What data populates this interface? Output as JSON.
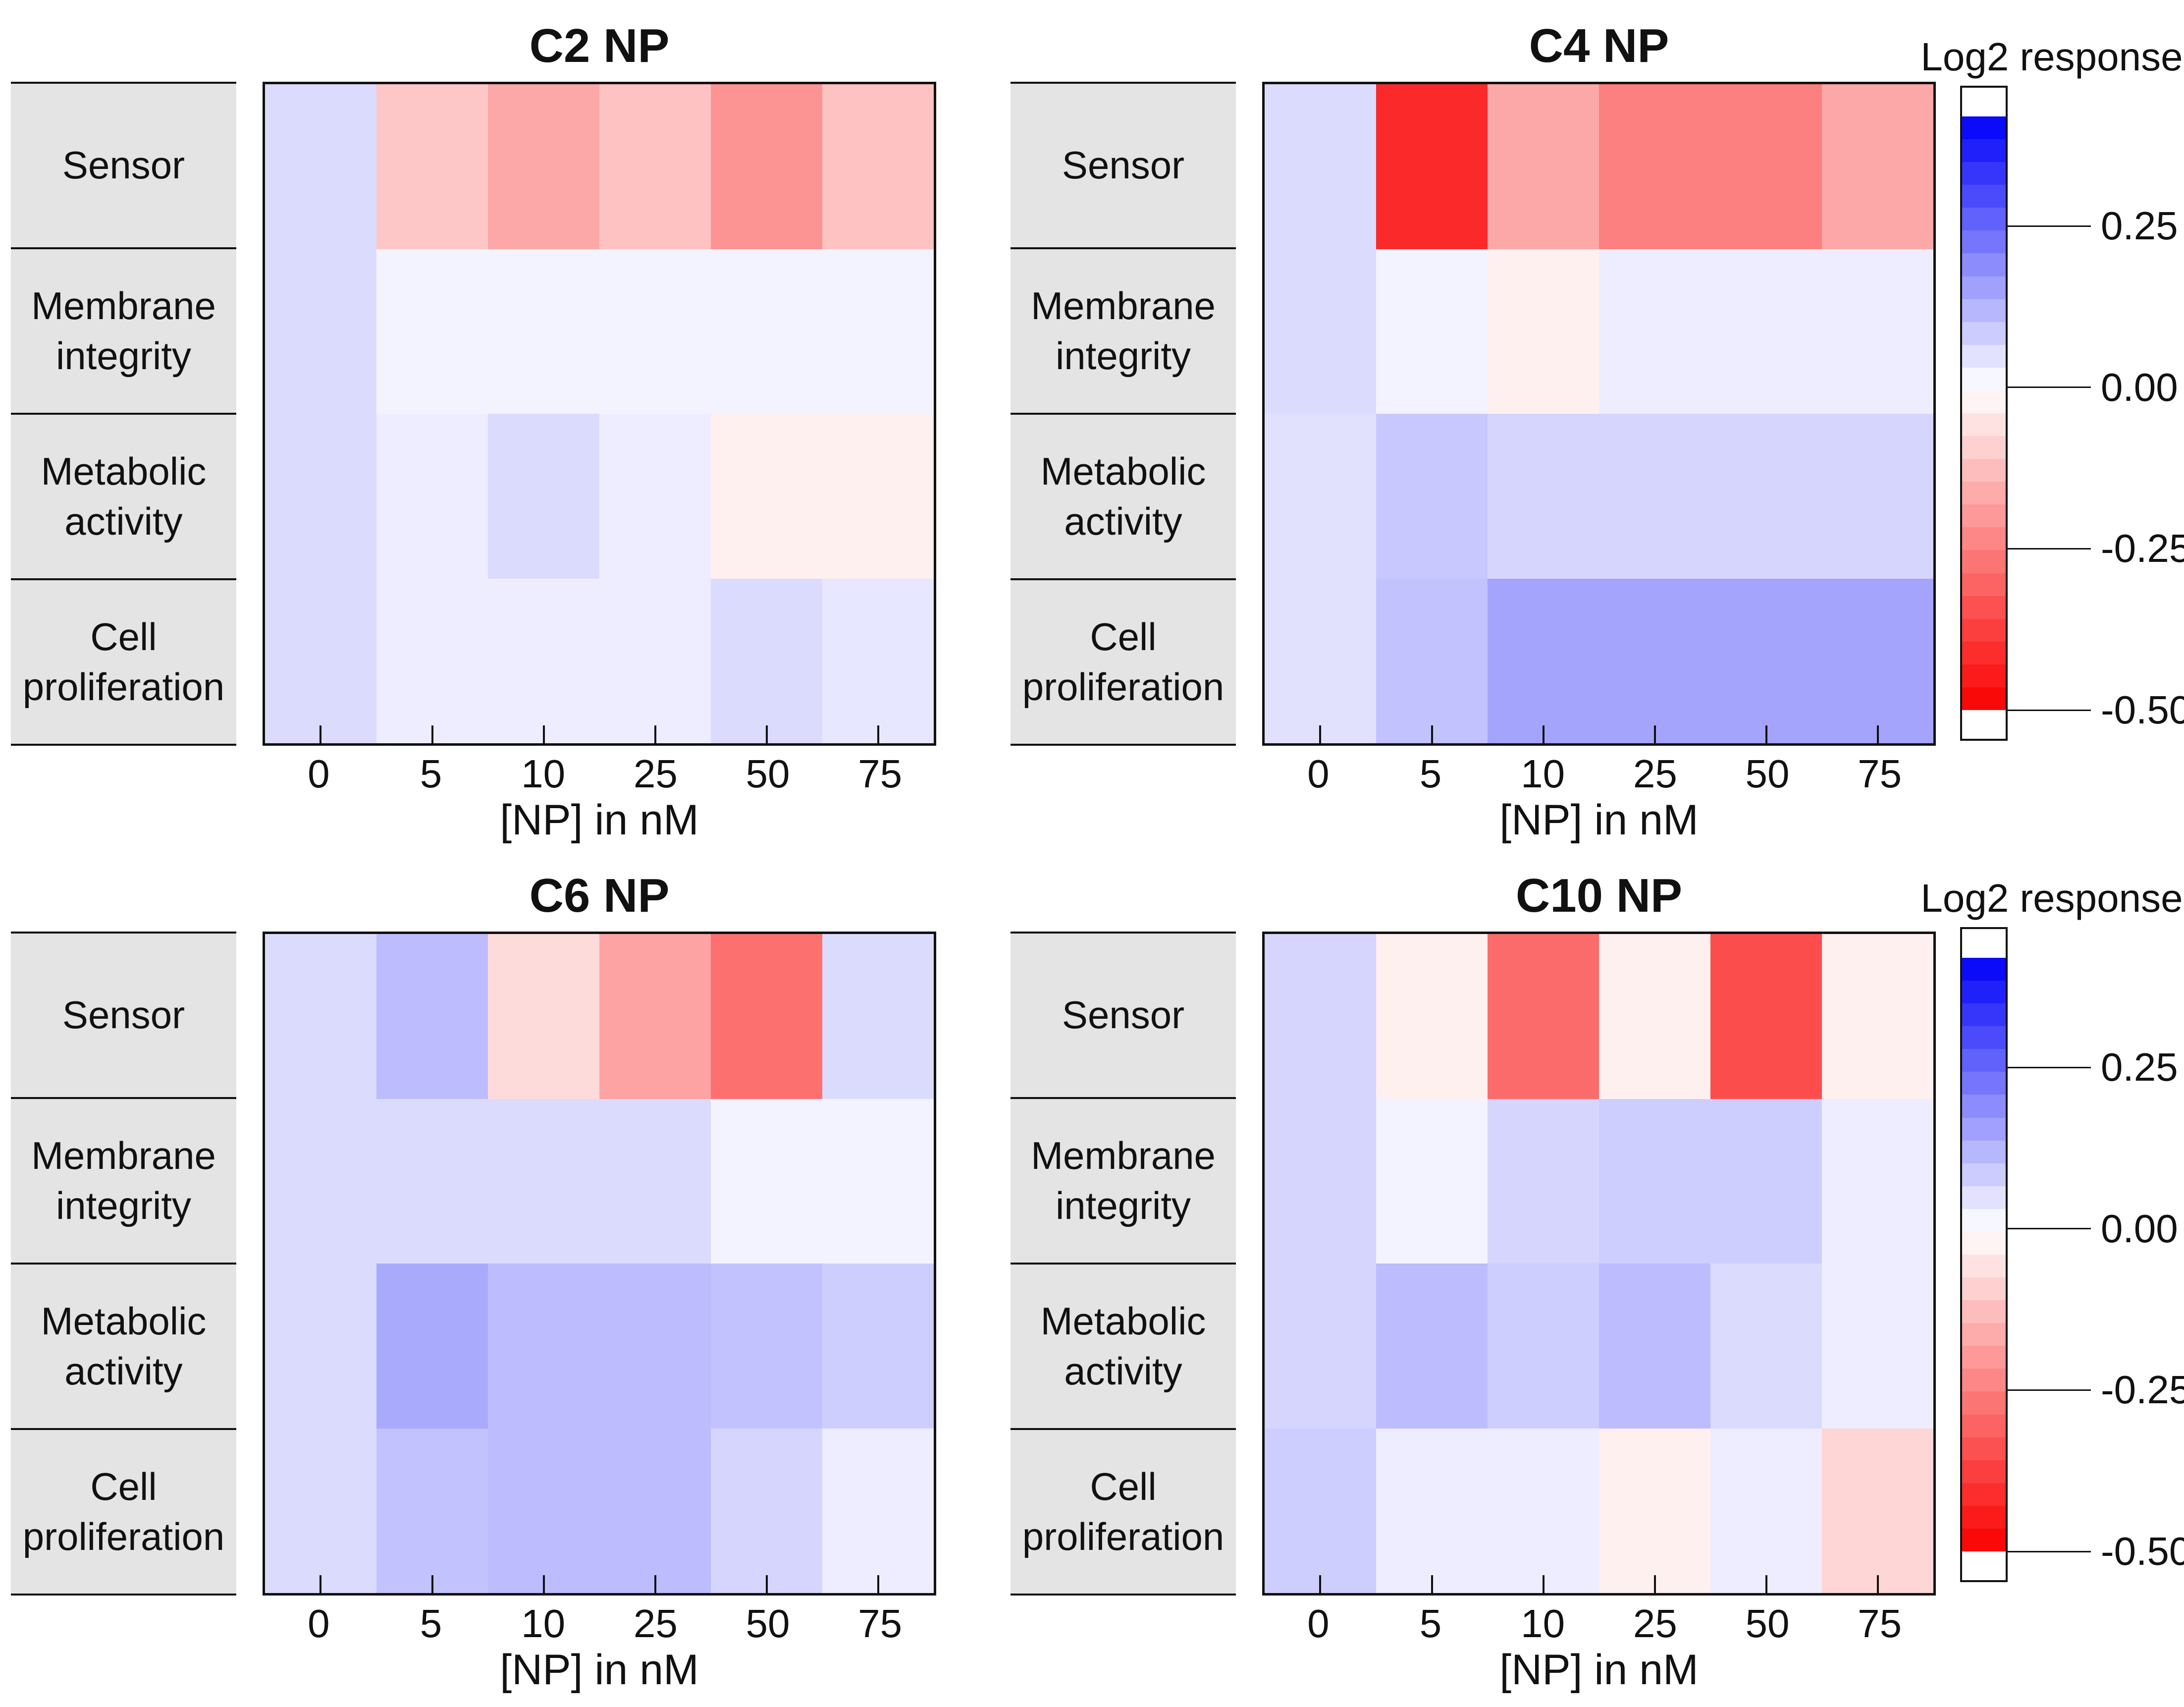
{
  "figure": {
    "background": "#ffffff",
    "line_color": "#111111",
    "label_box_bg": "#e4e4e4",
    "row_labels": [
      "Sensor",
      "Membrane integrity",
      "Metabolic activity",
      "Cell proliferation"
    ],
    "x_tick_labels": [
      "0",
      "5",
      "10",
      "25",
      "50",
      "75"
    ],
    "x_axis_label": "[NP] in nM"
  },
  "colorbar": {
    "title": "Log2 response",
    "ticks": [
      {
        "value": 0.25,
        "label": "0.25"
      },
      {
        "value": 0.0,
        "label": "0.00"
      },
      {
        "value": -0.25,
        "label": "-0.25"
      },
      {
        "value": -0.5,
        "label": "-0.50"
      }
    ],
    "gradient_top_value": 0.42,
    "gradient_bottom_value": -0.5,
    "steps": 26,
    "positive_color": "#0000fa",
    "zero_color": "#ffffff",
    "negative_color": "#fa0000"
  },
  "chart_data": [
    {
      "type": "heatmap",
      "title": "C2 NP",
      "rows": [
        "Sensor",
        "Membrane integrity",
        "Metabolic activity",
        "Cell proliferation"
      ],
      "columns": [
        "0",
        "5",
        "10",
        "25",
        "50",
        "75"
      ],
      "xlabel": "[NP] in nM",
      "legend_label": "Log2 response",
      "values": [
        [
          0.06,
          -0.11,
          -0.17,
          -0.12,
          -0.21,
          -0.12
        ],
        [
          0.06,
          0.02,
          0.02,
          0.02,
          0.02,
          0.02
        ],
        [
          0.06,
          0.03,
          0.06,
          0.03,
          -0.03,
          -0.03
        ],
        [
          0.06,
          0.03,
          0.03,
          0.03,
          0.06,
          0.04
        ]
      ]
    },
    {
      "type": "heatmap",
      "title": "C4 NP",
      "rows": [
        "Sensor",
        "Membrane integrity",
        "Metabolic activity",
        "Cell proliferation"
      ],
      "columns": [
        "0",
        "5",
        "10",
        "25",
        "50",
        "75"
      ],
      "xlabel": "[NP] in nM",
      "legend_label": "Log2 response",
      "values": [
        [
          0.06,
          -0.42,
          -0.17,
          -0.25,
          -0.25,
          -0.17
        ],
        [
          0.06,
          0.02,
          -0.03,
          0.03,
          0.03,
          0.03
        ],
        [
          0.05,
          0.09,
          0.07,
          0.07,
          0.07,
          0.07
        ],
        [
          0.05,
          0.1,
          0.15,
          0.15,
          0.15,
          0.15
        ]
      ]
    },
    {
      "type": "heatmap",
      "title": "C6 NP",
      "rows": [
        "Sensor",
        "Membrane integrity",
        "Metabolic activity",
        "Cell proliferation"
      ],
      "columns": [
        "0",
        "5",
        "10",
        "25",
        "50",
        "75"
      ],
      "xlabel": "[NP] in nM",
      "legend_label": "Log2 response",
      "values": [
        [
          0.06,
          0.11,
          -0.07,
          -0.18,
          -0.28,
          0.06
        ],
        [
          0.06,
          0.06,
          0.06,
          0.06,
          0.02,
          0.02
        ],
        [
          0.06,
          0.14,
          0.11,
          0.11,
          0.1,
          0.08
        ],
        [
          0.06,
          0.1,
          0.11,
          0.11,
          0.07,
          0.03
        ]
      ]
    },
    {
      "type": "heatmap",
      "title": "C10 NP",
      "rows": [
        "Sensor",
        "Membrane integrity",
        "Metabolic activity",
        "Cell proliferation"
      ],
      "columns": [
        "0",
        "5",
        "10",
        "25",
        "50",
        "75"
      ],
      "xlabel": "[NP] in nM",
      "legend_label": "Log2 response",
      "values": [
        [
          0.07,
          -0.03,
          -0.29,
          -0.03,
          -0.35,
          -0.03
        ],
        [
          0.07,
          0.02,
          0.07,
          0.08,
          0.08,
          0.03
        ],
        [
          0.07,
          0.11,
          0.08,
          0.11,
          0.06,
          0.03
        ],
        [
          0.08,
          0.03,
          0.03,
          -0.03,
          0.03,
          -0.08
        ]
      ]
    }
  ]
}
